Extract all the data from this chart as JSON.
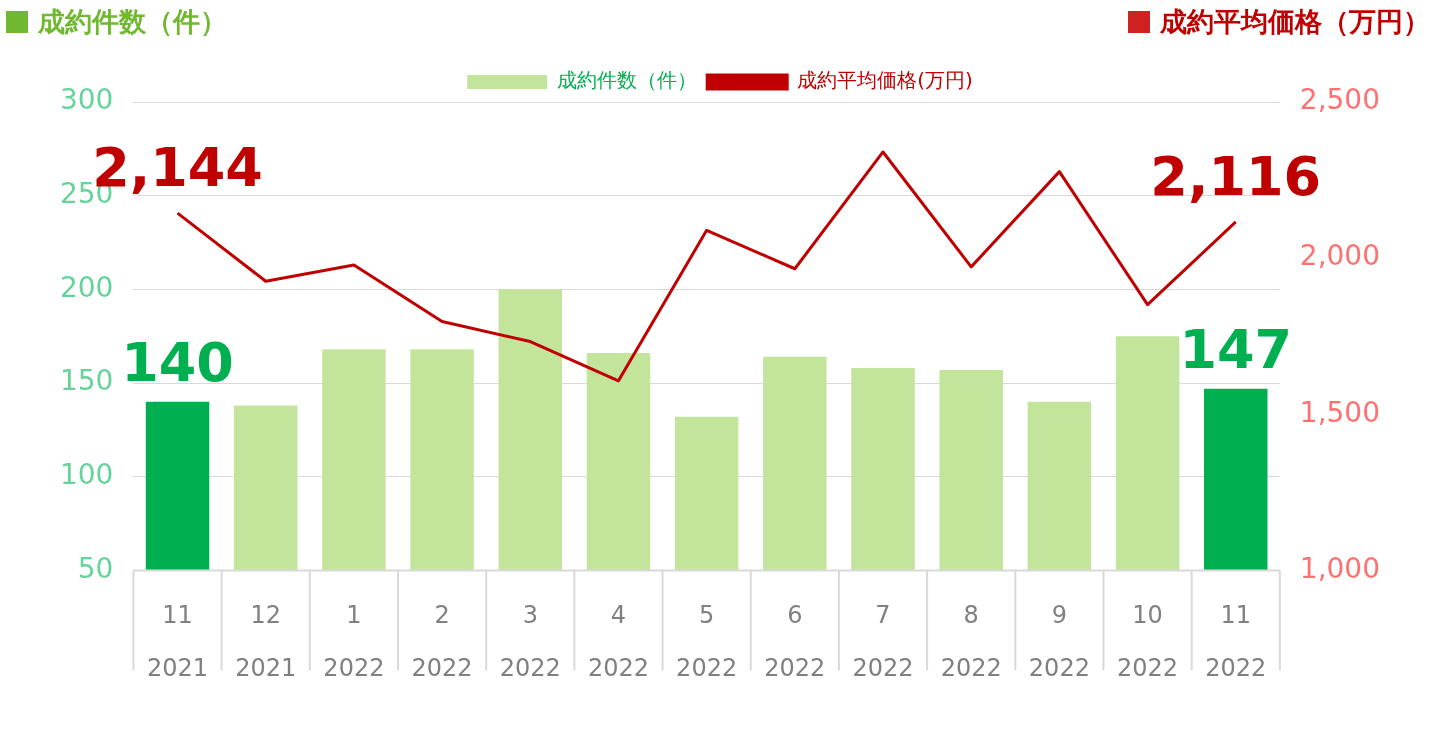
{
  "chart_data": {
    "type": "bar",
    "ylabel": "成約件数（件）",
    "y2label": "成約平均価格（万円）",
    "categories": [
      "11\n2021",
      "12\n2021",
      "1\n2022",
      "2\n2022",
      "3\n2022",
      "4\n2022",
      "5\n2022",
      "6\n2022",
      "7\n2022",
      "8\n2022",
      "9\n2022",
      "10\n2022",
      "11\n2022"
    ],
    "series": [
      {
        "name": "成約件数（件）",
        "color": "#c3e59b",
        "colors": [
          "#00b050",
          "#c3e59b",
          "#c3e59b",
          "#c3e59b",
          "#c3e59b",
          "#c3e59b",
          "#c3e59b",
          "#c3e59b",
          "#c3e59b",
          "#c3e59b",
          "#c3e59b",
          "#c3e59b",
          "#00b050"
        ],
        "values": [
          140,
          138,
          168,
          168,
          200,
          166,
          132,
          164,
          158,
          157,
          140,
          175,
          147
        ],
        "value_labels": [
          "140",
          null,
          null,
          null,
          null,
          null,
          null,
          null,
          null,
          null,
          null,
          null,
          "147"
        ]
      },
      {
        "name": "成約平均価格(万円)",
        "type": "line",
        "axis": "y2",
        "color": "#c00000",
        "values": [
          2144,
          1926,
          1978,
          1797,
          1733,
          1607,
          2089,
          1966,
          2340,
          1972,
          2277,
          1851,
          2116
        ],
        "value_labels": [
          "2,144",
          null,
          null,
          null,
          null,
          null,
          null,
          null,
          null,
          null,
          null,
          null,
          "2,116"
        ]
      }
    ],
    "ylim": [
      50,
      300
    ],
    "yticks": [
      50,
      100,
      150,
      200,
      250,
      300
    ],
    "y2lim": [
      1000,
      2500
    ],
    "y2ticks": [
      {
        "value": 1000,
        "label": "1,000"
      },
      {
        "value": 1500,
        "label": "1,500"
      },
      {
        "value": 2000,
        "label": "2,000"
      },
      {
        "value": 2500,
        "label": "2,500"
      }
    ],
    "grid": "y",
    "legend": "top",
    "marker": "none",
    "line_style": "solid"
  }
}
